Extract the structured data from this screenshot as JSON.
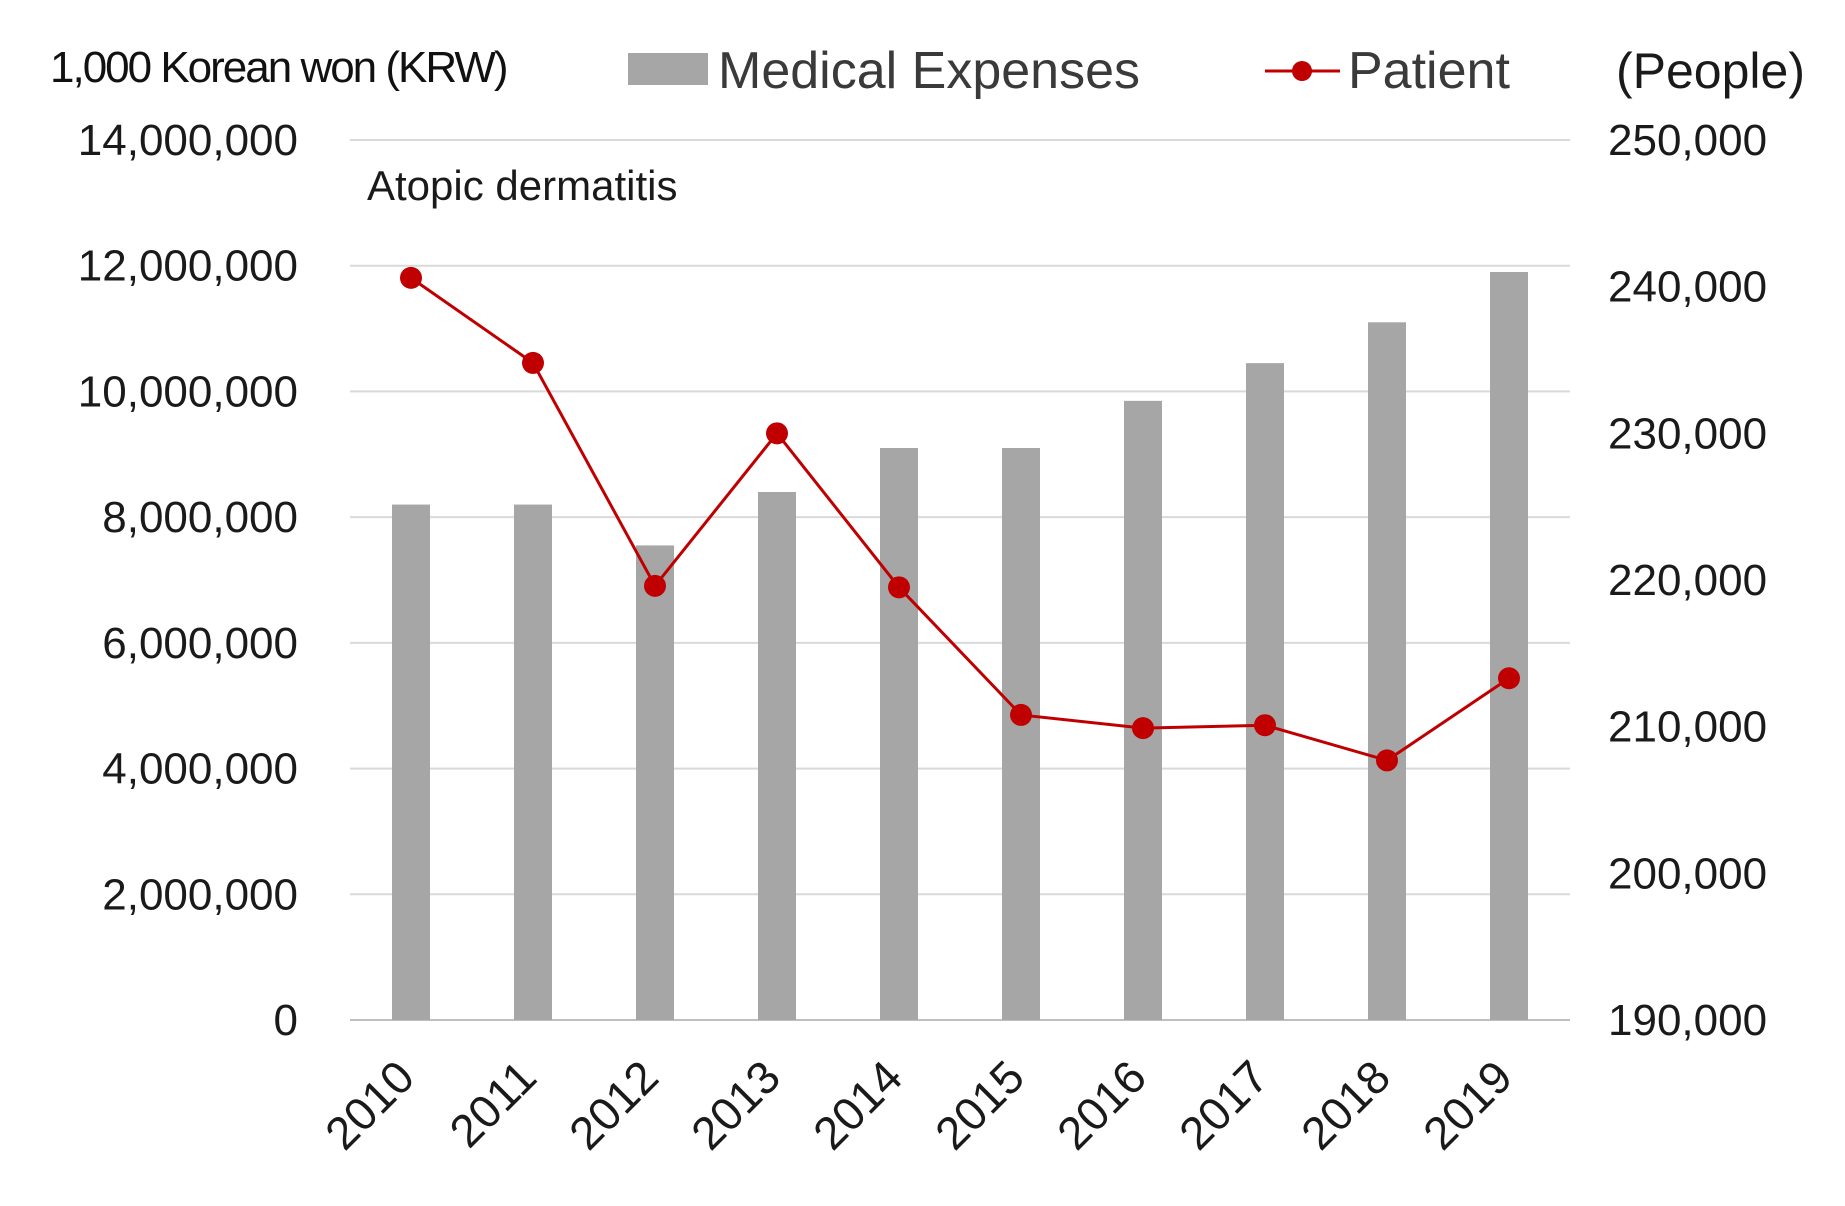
{
  "chart_data": {
    "type": "bar+line",
    "annotation": "Atopic dermatitis",
    "categories": [
      "2010",
      "2011",
      "2012",
      "2013",
      "2014",
      "2015",
      "2016",
      "2017",
      "2018",
      "2019"
    ],
    "series": [
      {
        "name": "Medical Expenses",
        "type": "bar",
        "axis": "left",
        "color": "#a6a6a6",
        "values": [
          8200000,
          8200000,
          7550000,
          8400000,
          9100000,
          9100000,
          9850000,
          10450000,
          11100000,
          11900000
        ]
      },
      {
        "name": "Patient",
        "type": "line",
        "axis": "right",
        "color": "#c00000",
        "values": [
          240600,
          234800,
          219600,
          230000,
          219500,
          210800,
          209900,
          210100,
          207700,
          213300
        ]
      }
    ],
    "left_axis": {
      "unit_label": "1,000 Korean won (KRW)",
      "min": 0,
      "max": 14000000,
      "ticks": [
        {
          "value": 0,
          "label": "0"
        },
        {
          "value": 2000000,
          "label": "2,000,000"
        },
        {
          "value": 4000000,
          "label": "4,000,000"
        },
        {
          "value": 6000000,
          "label": "6,000,000"
        },
        {
          "value": 8000000,
          "label": "8,000,000"
        },
        {
          "value": 10000000,
          "label": "10,000,000"
        },
        {
          "value": 12000000,
          "label": "12,000,000"
        },
        {
          "value": 14000000,
          "label": "14,000,000"
        }
      ]
    },
    "right_axis": {
      "unit_label": "(People)",
      "min": 190000,
      "max": 250000,
      "ticks": [
        {
          "value": 190000,
          "label": "190,000"
        },
        {
          "value": 200000,
          "label": "200,000"
        },
        {
          "value": 210000,
          "label": "210,000"
        },
        {
          "value": 220000,
          "label": "220,000"
        },
        {
          "value": 230000,
          "label": "230,000"
        },
        {
          "value": 240000,
          "label": "240,000"
        },
        {
          "value": 250000,
          "label": "250,000"
        }
      ]
    },
    "legend": {
      "position": "top",
      "entries": [
        {
          "label": "Medical Expenses",
          "marker": "bar"
        },
        {
          "label": "Patient",
          "marker": "line-dot"
        }
      ]
    },
    "grid": true
  }
}
